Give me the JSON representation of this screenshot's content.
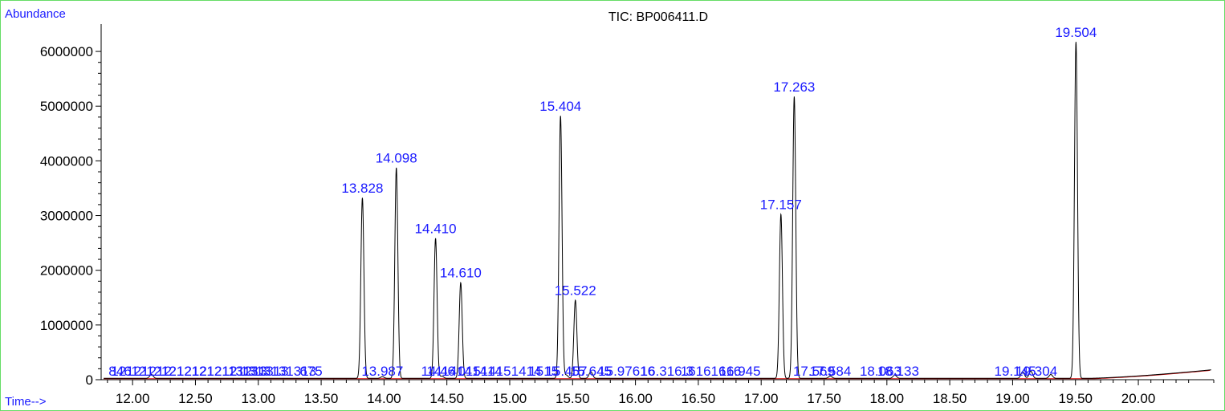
{
  "chart_data": {
    "type": "line",
    "title": "TIC: BP006411.D",
    "ylabel": "Abundance",
    "xlabel": "Time-->",
    "xlim": [
      11.75,
      20.6
    ],
    "ylim": [
      0,
      6500000
    ],
    "grid": false,
    "x_ticks": [
      "12.00",
      "12.50",
      "13.00",
      "13.50",
      "14.00",
      "14.50",
      "15.00",
      "15.50",
      "16.00",
      "16.50",
      "17.00",
      "17.50",
      "18.00",
      "18.50",
      "19.00",
      "19.50",
      "20.00"
    ],
    "y_ticks": [
      "0",
      "1000000",
      "2000000",
      "3000000",
      "4000000",
      "5000000",
      "6000000"
    ],
    "colors": {
      "trace": "#000000",
      "baseline": "#cc0000",
      "peak_label": "#1a1aff",
      "frame": "#66dd66"
    },
    "peaks": [
      {
        "rt": 13.828,
        "label": "13.828",
        "height": 3300000
      },
      {
        "rt": 14.098,
        "label": "14.098",
        "height": 3850000
      },
      {
        "rt": 14.41,
        "label": "14.410",
        "height": 2560000
      },
      {
        "rt": 14.61,
        "label": "14.610",
        "height": 1750000
      },
      {
        "rt": 15.404,
        "label": "15.404",
        "height": 4800000
      },
      {
        "rt": 15.522,
        "label": "15.522",
        "height": 1430000
      },
      {
        "rt": 17.157,
        "label": "17.157",
        "height": 3000000
      },
      {
        "rt": 17.263,
        "label": "17.263",
        "height": 5150000
      },
      {
        "rt": 19.504,
        "label": "19.504",
        "height": 6150000
      }
    ],
    "minor_peaks": [
      {
        "rt": 12.15,
        "height": 70000
      },
      {
        "rt": 13.987,
        "height": 30000
      },
      {
        "rt": 14.46,
        "height": 40000
      },
      {
        "rt": 15.45,
        "height": 60000
      },
      {
        "rt": 15.645,
        "height": 120000
      },
      {
        "rt": 17.55,
        "height": 40000
      },
      {
        "rt": 18.063,
        "height": 60000
      },
      {
        "rt": 19.08,
        "height": 120000
      },
      {
        "rt": 19.145,
        "height": 130000
      },
      {
        "rt": 19.304,
        "height": 70000
      }
    ],
    "small_labels": [
      {
        "rt": 11.9,
        "text": "846"
      },
      {
        "rt": 12.07,
        "text": "12121212"
      },
      {
        "rt": 12.29,
        "text": "1212121212"
      },
      {
        "rt": 12.53,
        "text": "1212121212"
      },
      {
        "rt": 12.77,
        "text": "1212121213"
      },
      {
        "rt": 13.0,
        "text": "13131313"
      },
      {
        "rt": 13.16,
        "text": "1313131313"
      },
      {
        "rt": 13.42,
        "text": "675"
      },
      {
        "rt": 13.987,
        "text": "13.987"
      },
      {
        "rt": 14.43,
        "text": "14.46"
      },
      {
        "rt": 14.64,
        "text": "1414141414"
      },
      {
        "rt": 14.92,
        "text": "01514151414"
      },
      {
        "rt": 15.27,
        "text": "1515"
      },
      {
        "rt": 15.45,
        "text": "15.457"
      },
      {
        "rt": 15.645,
        "text": "15.645"
      },
      {
        "rt": 15.93,
        "text": "15.97616"
      },
      {
        "rt": 16.25,
        "text": "16.316.3"
      },
      {
        "rt": 16.6,
        "text": "16161616"
      },
      {
        "rt": 16.83,
        "text": "16.945"
      },
      {
        "rt": 17.42,
        "text": "17.569"
      },
      {
        "rt": 17.55,
        "text": "17.584"
      },
      {
        "rt": 17.95,
        "text": "18.063"
      },
      {
        "rt": 18.09,
        "text": "18.133"
      },
      {
        "rt": 19.02,
        "text": "19.145"
      },
      {
        "rt": 19.19,
        "text": "19.304"
      }
    ]
  }
}
